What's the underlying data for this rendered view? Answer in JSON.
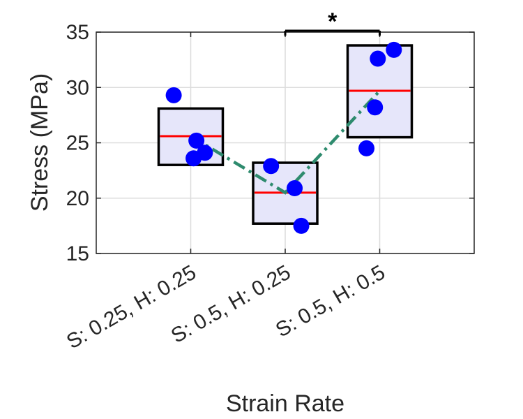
{
  "chart_data": {
    "type": "box",
    "title": "",
    "xlabel": "Strain Rate",
    "ylabel": "Stress (MPa)",
    "categories": [
      "S: 0.25, H: 0.25",
      "S: 0.5, H: 0.25",
      "S: 0.5, H: 0.5"
    ],
    "ylim": [
      15,
      35
    ],
    "yticks": [
      15,
      20,
      25,
      30,
      35
    ],
    "grid": true,
    "boxes": [
      {
        "category": "S: 0.25, H: 0.25",
        "low": 23.0,
        "high": 28.1,
        "center": 25.6
      },
      {
        "category": "S: 0.5, H: 0.25",
        "low": 17.7,
        "high": 23.2,
        "center": 20.5
      },
      {
        "category": "S: 0.5, H: 0.5",
        "low": 25.5,
        "high": 33.8,
        "center": 29.7
      }
    ],
    "points": [
      {
        "category": "S: 0.25, H: 0.25",
        "values": [
          29.3,
          25.2,
          24.1,
          23.6
        ],
        "offsets": [
          -0.18,
          0.06,
          0.15,
          0.03
        ]
      },
      {
        "category": "S: 0.5, H: 0.25",
        "values": [
          22.9,
          20.9,
          17.5
        ],
        "offsets": [
          -0.15,
          0.1,
          0.17
        ]
      },
      {
        "category": "S: 0.5, H: 0.5",
        "values": [
          33.4,
          32.6,
          28.2,
          24.5
        ],
        "offsets": [
          0.15,
          -0.02,
          -0.05,
          -0.14
        ]
      }
    ],
    "trend_line": {
      "values": [
        25.6,
        20.5,
        29.7
      ],
      "style": "dash-dot"
    },
    "significance": [
      {
        "from": "S: 0.5, H: 0.25",
        "to": "S: 0.5, H: 0.5",
        "label": "*"
      }
    ],
    "colors": {
      "box_fill": "#e6e6fa",
      "box_edge": "#000000",
      "center_line": "#ff0000",
      "points": "#0000ff",
      "trend_line": "#2e8b6e",
      "grid": "#dcdcdc",
      "axis": "#262626"
    }
  }
}
